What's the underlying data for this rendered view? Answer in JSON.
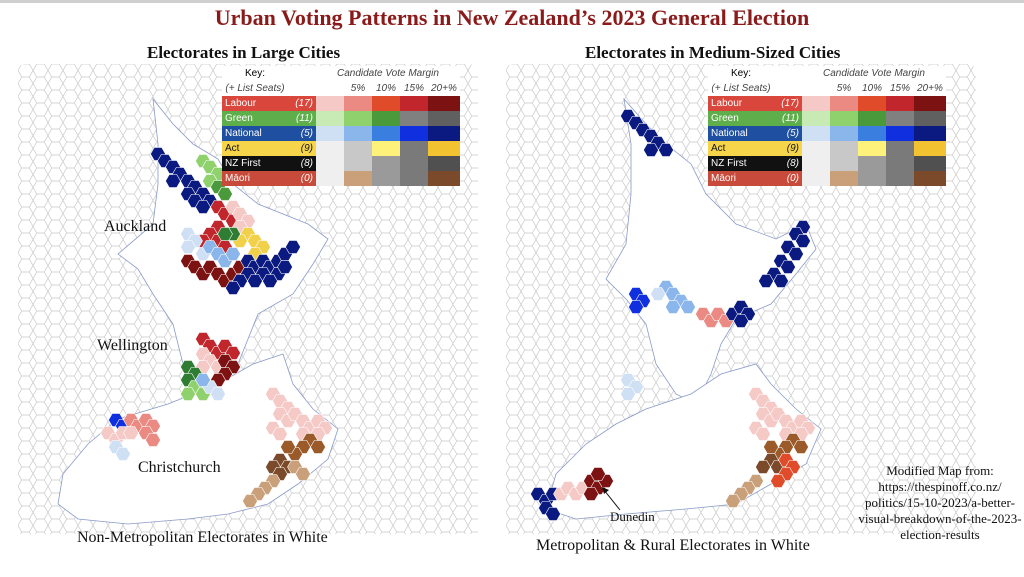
{
  "title": "Urban Voting Patterns in New Zealand’s 2023 General Election",
  "panels": [
    {
      "heading": "Electorates in Large Cities",
      "cities": [
        "Auckland",
        "Wellington",
        "Christchurch"
      ],
      "caption": "Non-Metropolitan Electorates in White"
    },
    {
      "heading": "Electorates in Medium-Sized Cities",
      "annotation": "Dunedin",
      "caption": "Metropolitan & Rural Electorates in White"
    }
  ],
  "key": {
    "label": "Key:",
    "seats_label": "(+ List Seats)",
    "margin_label": "Candidate Vote Margin",
    "margins": [
      "5%",
      "10%",
      "15%",
      "20+%"
    ],
    "parties": [
      {
        "name": "Labour",
        "seats": "(17)",
        "color": "#d9463b",
        "text": "#fff",
        "shades": [
          "#f5c9c6",
          "#ea8a82",
          "#e04b2a",
          "#c0262b",
          "#7d1212"
        ]
      },
      {
        "name": "Green",
        "seats": "(11)",
        "color": "#5fae4c",
        "text": "#fff",
        "shades": [
          "#c8eab5",
          "#8fd26d",
          "#4a9a3c",
          "#808080",
          "#606060"
        ]
      },
      {
        "name": "National",
        "seats": "(5)",
        "color": "#1f4fa0",
        "text": "#fff",
        "shades": [
          "#cfe0f5",
          "#8ab6ec",
          "#3a7fe0",
          "#1030e0",
          "#0a1a80"
        ]
      },
      {
        "name": "Act",
        "seats": "(9)",
        "color": "#f6d54a",
        "text": "#111",
        "shades": [
          "#efefef",
          "#c8c8c8",
          "#fff27a",
          "#7a7a7a",
          "#f2c230"
        ]
      },
      {
        "name": "NZ First",
        "seats": "(8)",
        "color": "#111111",
        "text": "#fff",
        "shades": [
          "#efefef",
          "#c8c8c8",
          "#9a9a9a",
          "#7a7a7a",
          "#505050"
        ]
      },
      {
        "name": "Māori",
        "seats": "(0)",
        "color": "#c84a3a",
        "text": "#fff",
        "shades": [
          "#efefef",
          "#c9a07a",
          "#9a9a9a",
          "#7a7a7a",
          "#7a4a2a"
        ]
      }
    ]
  },
  "source": "Modified Map from: https://thespinoff.co.nz/ politics/15-10-2023/a-better-visual-breakdown-of-the-2023-election-results"
}
